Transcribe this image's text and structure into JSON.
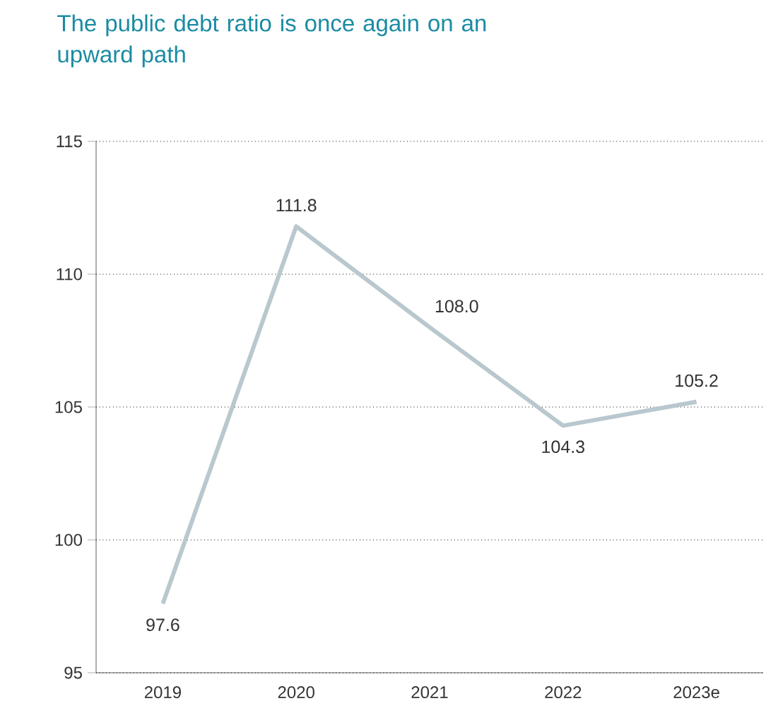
{
  "chart_data": {
    "type": "line",
    "title": "The public debt ratio is once again on an upward path",
    "categories": [
      "2019",
      "2020",
      "2021",
      "2022",
      "2023e"
    ],
    "values": [
      97.6,
      111.8,
      108.0,
      104.3,
      105.2
    ],
    "value_labels": [
      "97.6",
      "111.8",
      "108.0",
      "104.3",
      "105.2"
    ],
    "color": "#b9c8ce",
    "ylim": [
      95,
      115
    ],
    "yticks": [
      95,
      100,
      105,
      110,
      115
    ],
    "grid": "y",
    "line_style": "solid"
  }
}
